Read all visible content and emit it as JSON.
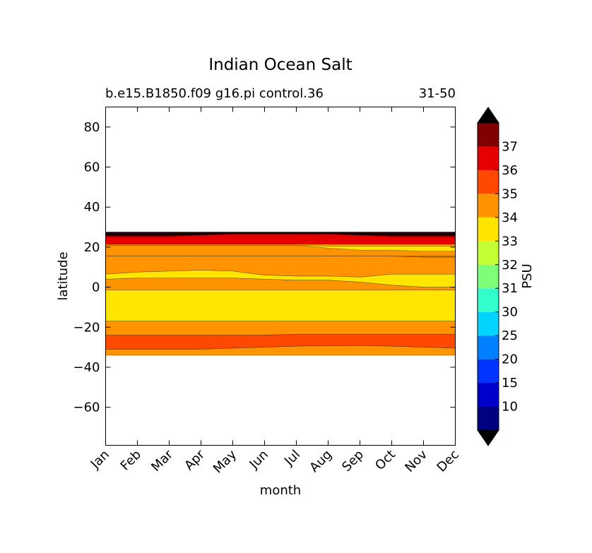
{
  "chart_data": {
    "type": "contourf",
    "title": "Indian Ocean Salt",
    "subtitle_left": "b.e15.B1850.f09 g16.pi control.36",
    "subtitle_right": "31-50",
    "xlabel": "month",
    "ylabel": "latitude",
    "x_ticks": [
      "Jan",
      "Feb",
      "Mar",
      "Apr",
      "May",
      "Jun",
      "Jul",
      "Aug",
      "Sep",
      "Oct",
      "Nov",
      "Dec"
    ],
    "y_ticks": [
      80,
      60,
      40,
      20,
      0,
      -20,
      -40,
      -60
    ],
    "ylim": [
      -79,
      90
    ],
    "colorbar": {
      "label": "PSU",
      "tick_labels": [
        "10",
        "15",
        "20",
        "25",
        "30",
        "31",
        "32",
        "33",
        "34",
        "35",
        "36",
        "37"
      ],
      "colors": [
        "#000080",
        "#0000cd",
        "#0033ff",
        "#0080ff",
        "#00d4ff",
        "#33ffcc",
        "#7dff7a",
        "#c4ff33",
        "#ffe500",
        "#ff9400",
        "#ff4800",
        "#e60000",
        "#800000"
      ],
      "under_color": "#000000",
      "over_color": "#000000"
    },
    "bands": [
      {
        "level": "36-37",
        "color": "#e60000",
        "upper": [
          27.5,
          27.5,
          27.5,
          27.5,
          27.5,
          27.5,
          27.5,
          27.5,
          27.5,
          27.5,
          27.5,
          27.5
        ],
        "lower": [
          21.5,
          21.5,
          21.5,
          21.5,
          21.5,
          21.5,
          21.5,
          21.5,
          21.5,
          21.5,
          21.5,
          21.5
        ]
      },
      {
        "level": "34-35",
        "color": "#ff9400",
        "upper": [
          21.5,
          21.5,
          21.5,
          21.5,
          21.5,
          21.5,
          21.5,
          21.5,
          21.5,
          21.5,
          21.5,
          21.5
        ],
        "lower": [
          6.5,
          7.5,
          8,
          8.5,
          8,
          6,
          5.5,
          5.5,
          5,
          6.5,
          6.5,
          6.5
        ]
      },
      {
        "level": "33-34",
        "color": "#ffe500",
        "upper": [
          6.5,
          7.5,
          8,
          8.5,
          8,
          6,
          5.5,
          5.5,
          5,
          6.5,
          6.5,
          6.5
        ],
        "lower": [
          4,
          4.5,
          4.5,
          4.5,
          4.5,
          4,
          3.5,
          3.5,
          2.5,
          1,
          0,
          0
        ]
      },
      {
        "level": "34-35",
        "color": "#ff9400",
        "upper": [
          4,
          4.5,
          4.5,
          4.5,
          4.5,
          4,
          3.5,
          3.5,
          2.5,
          1,
          0,
          0
        ],
        "lower": [
          -1.5,
          -1.5,
          -1.5,
          -1.5,
          -1.5,
          -1.5,
          -1.5,
          -1.5,
          -1.5,
          -1.5,
          -1.5,
          -1.5
        ]
      },
      {
        "level": "33-34",
        "color": "#ffe500",
        "upper": [
          -1.5,
          -1.5,
          -1.5,
          -1.5,
          -1.5,
          -1.5,
          -1.5,
          -1.5,
          -1.5,
          -1.5,
          -1.5,
          -1.5
        ],
        "lower": [
          -17,
          -17,
          -17,
          -17,
          -17,
          -17,
          -17,
          -17,
          -17,
          -17,
          -17,
          -17
        ]
      },
      {
        "level": "34-35",
        "color": "#ff9400",
        "upper": [
          -17,
          -17,
          -17,
          -17,
          -17,
          -17,
          -17,
          -17,
          -17,
          -17,
          -17,
          -17
        ],
        "lower": [
          -24,
          -24,
          -24,
          -24,
          -24,
          -24,
          -23.5,
          -23.5,
          -23.5,
          -23.5,
          -23.5,
          -23.5
        ]
      },
      {
        "level": "35-36",
        "color": "#ff4800",
        "upper": [
          -24,
          -24,
          -24,
          -24,
          -24,
          -24,
          -23.5,
          -23.5,
          -23.5,
          -23.5,
          -23.5,
          -23.5
        ],
        "lower": [
          -31,
          -31,
          -31,
          -31,
          -30.5,
          -30,
          -29.5,
          -29.3,
          -29.2,
          -29.5,
          -30,
          -30.5
        ]
      },
      {
        "level": "34-35",
        "color": "#ff9400",
        "upper": [
          -31,
          -31,
          -31,
          -31,
          -30.5,
          -30,
          -29.5,
          -29.3,
          -29.2,
          -29.5,
          -30,
          -30.5
        ],
        "lower": [
          -34,
          -34,
          -34,
          -34,
          -34,
          -34,
          -34,
          -34,
          -34,
          -34,
          -34,
          -34
        ]
      },
      {
        "level": "33-34",
        "color": "#ffe500",
        "upper": [
          21,
          21,
          21,
          21,
          21,
          21,
          21,
          20.5,
          20.5,
          20.5,
          20.5,
          20.5
        ],
        "lower": [
          21,
          21,
          21,
          21,
          21,
          21,
          21,
          19.5,
          18.5,
          18.5,
          18,
          18
        ]
      },
      {
        "level": "35-36",
        "color": "#ff4800",
        "upper": [
          15.5,
          15.5,
          15.5,
          15.5,
          15.5,
          15.5,
          15.5,
          15.5,
          15.5,
          15.5,
          15.5,
          15.5
        ],
        "lower": [
          15.5,
          15.5,
          15.5,
          15.5,
          15.5,
          15.5,
          15.5,
          15.5,
          15.5,
          15.5,
          15,
          15
        ]
      },
      {
        "level": ">37",
        "color": "#1a0000",
        "upper": [
          27.5,
          27.5,
          27.5,
          27.5,
          27.5,
          27.5,
          27.5,
          27.5,
          27.5,
          27.5,
          27.5,
          27.5
        ],
        "lower": [
          25.5,
          25.5,
          25.5,
          26,
          26.5,
          26.5,
          26.5,
          26.5,
          26,
          25.5,
          25.5,
          25.5
        ]
      },
      {
        "level": "36-37",
        "color": "#e60000",
        "upper": [
          25.5,
          25.5,
          25.5,
          26,
          26.5,
          26.5,
          26.5,
          26.5,
          26,
          25.5,
          25.5,
          25.5
        ],
        "lower": [
          25,
          25,
          25,
          25,
          25,
          25,
          25,
          25,
          25,
          25,
          25,
          25
        ]
      }
    ]
  }
}
